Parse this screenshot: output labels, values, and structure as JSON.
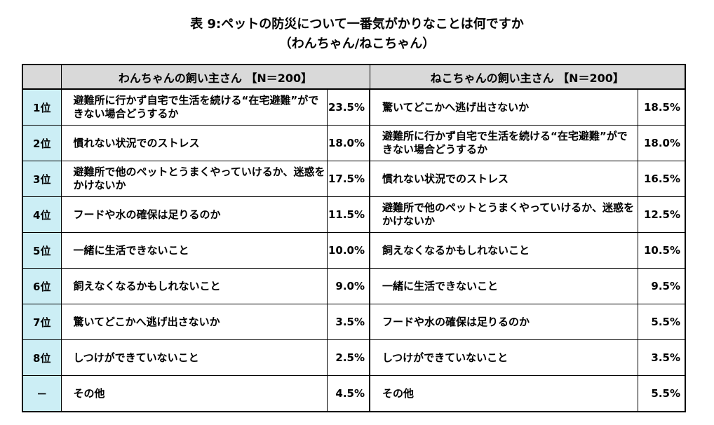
{
  "title": {
    "main": "表 9:ペットの防災について一番気がかりなことは何ですか",
    "sub": "（わんちゃん/ねこちゃん）"
  },
  "headers": {
    "dog": "わんちゃんの飼い主さん 【N＝200】",
    "cat": "ねこちゃんの飼い主さん 【N＝200】"
  },
  "rows": [
    {
      "rank": "1位",
      "dog_item": "避難所に行かず自宅で生活を続ける“在宅避難”ができない場合どうするか",
      "dog_pct": "23.5%",
      "cat_item": "驚いてどこかへ逃げ出さないか",
      "cat_pct": "18.5%"
    },
    {
      "rank": "2位",
      "dog_item": "慣れない状況でのストレス",
      "dog_pct": "18.0%",
      "cat_item": "避難所に行かず自宅で生活を続ける“在宅避難”ができない場合どうするか",
      "cat_pct": "18.0%"
    },
    {
      "rank": "3位",
      "dog_item": "避難所で他のペットとうまくやっていけるか、迷惑をかけないか",
      "dog_pct": "17.5%",
      "cat_item": "慣れない状況でのストレス",
      "cat_pct": "16.5%"
    },
    {
      "rank": "4位",
      "dog_item": "フードや水の確保は足りるのか",
      "dog_pct": "11.5%",
      "cat_item": "避難所で他のペットとうまくやっていけるか、迷惑をかけないか",
      "cat_pct": "12.5%"
    },
    {
      "rank": "5位",
      "dog_item": "一緒に生活できないこと",
      "dog_pct": "10.0%",
      "cat_item": "飼えなくなるかもしれないこと",
      "cat_pct": "10.5%"
    },
    {
      "rank": "6位",
      "dog_item": "飼えなくなるかもしれないこと",
      "dog_pct": "9.0%",
      "cat_item": "一緒に生活できないこと",
      "cat_pct": "9.5%"
    },
    {
      "rank": "7位",
      "dog_item": "驚いてどこかへ逃げ出さないか",
      "dog_pct": "3.5%",
      "cat_item": "フードや水の確保は足りるのか",
      "cat_pct": "5.5%"
    },
    {
      "rank": "8位",
      "dog_item": "しつけができていないこと",
      "dog_pct": "2.5%",
      "cat_item": "しつけができていないこと",
      "cat_pct": "3.5%"
    },
    {
      "rank": "－",
      "dog_item": "その他",
      "dog_pct": "4.5%",
      "cat_item": "その他",
      "cat_pct": "5.5%"
    }
  ]
}
